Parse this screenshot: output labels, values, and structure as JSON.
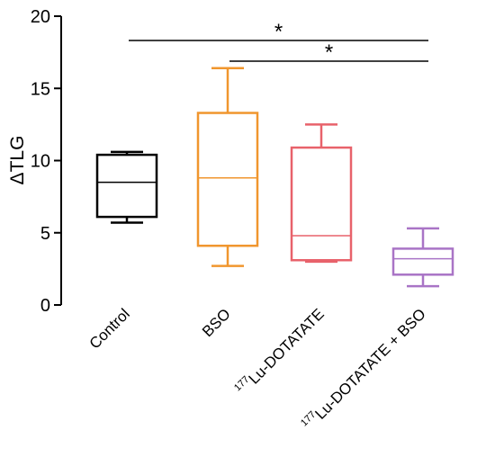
{
  "chart_data": {
    "type": "box",
    "ylabel": "ΔTLG",
    "ylim": [
      0,
      20
    ],
    "yticks": [
      0,
      5,
      10,
      15,
      20
    ],
    "grid": false,
    "categories": [
      {
        "prefix": "",
        "label": "Control"
      },
      {
        "prefix": "",
        "label": "BSO"
      },
      {
        "prefix": "177",
        "label": "Lu-DOTATATE"
      },
      {
        "prefix": "177",
        "label": "Lu-DOTATATE + BSO"
      }
    ],
    "boxes": [
      {
        "min": 5.7,
        "q1": 6.1,
        "median": 8.5,
        "q3": 10.4,
        "max": 10.6,
        "color": "#000000"
      },
      {
        "min": 2.7,
        "q1": 4.1,
        "median": 8.8,
        "q3": 13.3,
        "max": 16.4,
        "color": "#F0962E"
      },
      {
        "min": 3.0,
        "q1": 3.1,
        "median": 4.8,
        "q3": 10.9,
        "max": 12.5,
        "color": "#E8626B"
      },
      {
        "min": 1.3,
        "q1": 2.1,
        "median": 3.2,
        "q3": 3.9,
        "max": 5.3,
        "color": "#A974C6"
      }
    ],
    "significance": [
      {
        "from": 0,
        "to": 3,
        "label": "*"
      },
      {
        "from": 1,
        "to": 3,
        "label": "*"
      }
    ]
  }
}
